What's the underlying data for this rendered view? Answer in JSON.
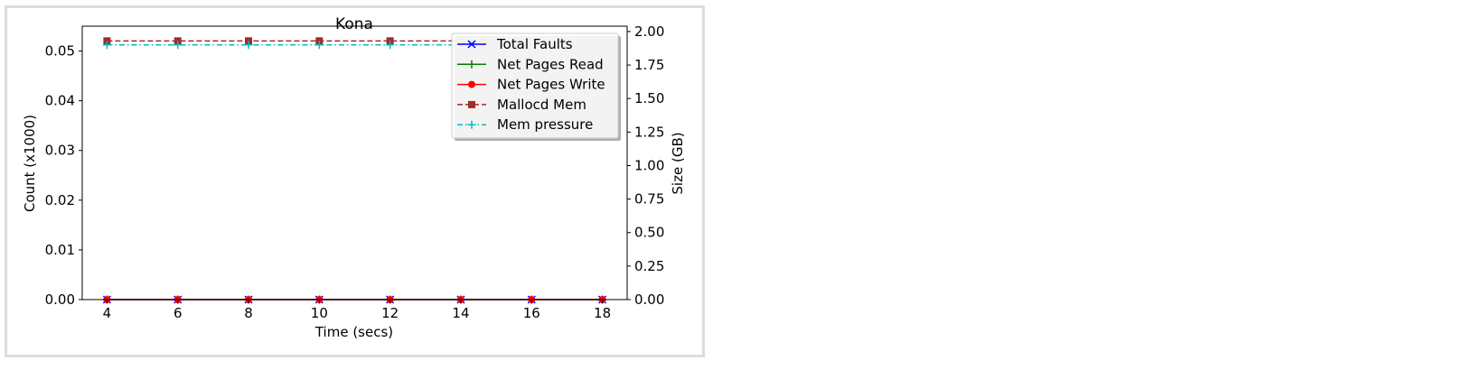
{
  "chart_data": {
    "type": "line",
    "title": "Kona",
    "xlabel": "Time (secs)",
    "ylabel_left": "Count (x1000)",
    "ylabel_right": "Size (GB)",
    "x": [
      4,
      6,
      8,
      10,
      12,
      14,
      16,
      18
    ],
    "xlim": [
      3.3,
      18.7
    ],
    "xticks": [
      4,
      6,
      8,
      10,
      12,
      14,
      16,
      18
    ],
    "ylim_left": [
      0,
      0.055
    ],
    "yticks_left": [
      "0.00",
      "0.01",
      "0.02",
      "0.03",
      "0.04",
      "0.05"
    ],
    "ylim_right": [
      0,
      2.04
    ],
    "yticks_right": [
      "0.00",
      "0.25",
      "0.50",
      "0.75",
      "1.00",
      "1.25",
      "1.50",
      "1.75",
      "2.00"
    ],
    "grid": false,
    "legend_position": "top-right",
    "series": [
      {
        "name": "Total Faults",
        "axis": "left",
        "color": "#0000ff",
        "marker": "x",
        "linestyle": "solid",
        "values": [
          0,
          0,
          0,
          0,
          0,
          0,
          0,
          0
        ]
      },
      {
        "name": "Net Pages Read",
        "axis": "left",
        "color": "#008000",
        "marker": "+",
        "linestyle": "solid",
        "values": [
          0,
          0,
          0,
          0,
          0,
          0,
          0,
          0
        ]
      },
      {
        "name": "Net Pages Write",
        "axis": "left",
        "color": "#ff0000",
        "marker": "circle",
        "linestyle": "solid",
        "values": [
          0,
          0,
          0,
          0,
          0,
          0,
          0,
          0
        ]
      },
      {
        "name": "Mallocd Mem",
        "axis": "right",
        "color": "#a52a2a",
        "marker": "square",
        "linestyle": "dashed",
        "values": [
          1.93,
          1.93,
          1.93,
          1.93,
          1.93,
          1.93,
          1.93,
          1.93
        ]
      },
      {
        "name": "Mem pressure",
        "axis": "right",
        "color": "#00bfbf",
        "marker": "+",
        "linestyle": "dashdot",
        "values": [
          1.9,
          1.9,
          1.9,
          1.9,
          1.9,
          1.9,
          1.9,
          1.9
        ]
      }
    ]
  }
}
